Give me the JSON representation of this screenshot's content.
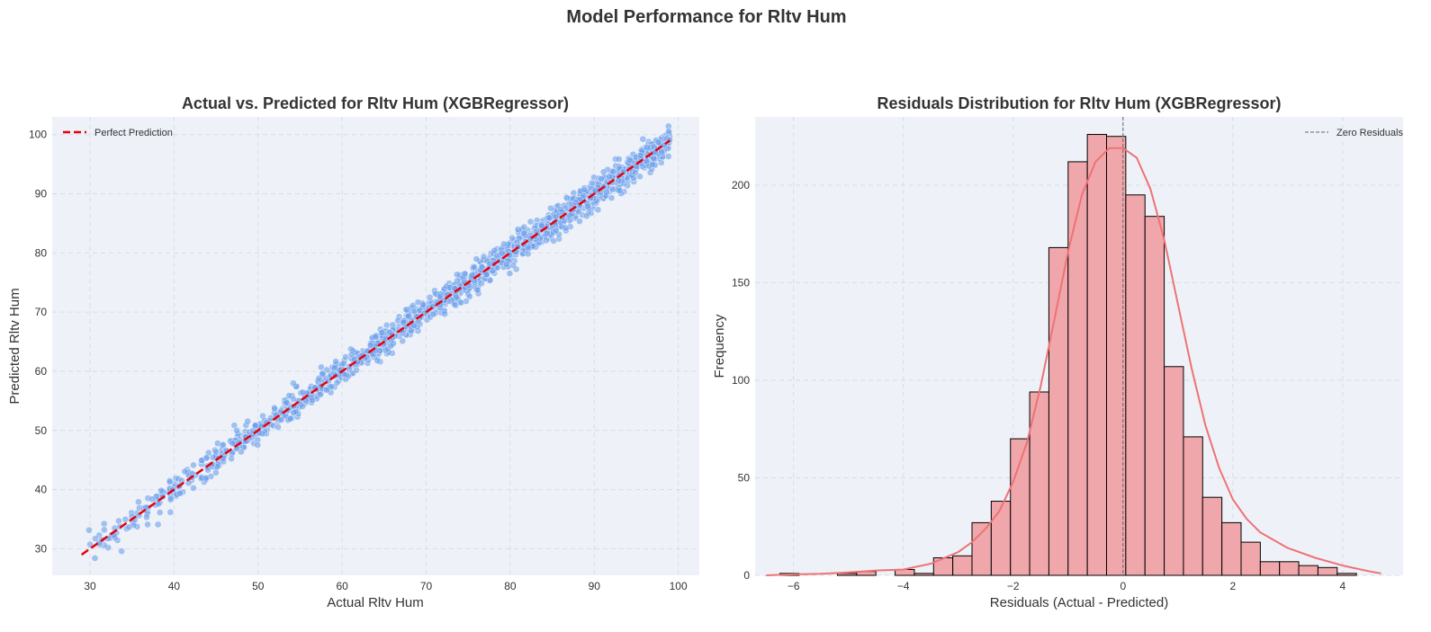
{
  "figure": {
    "suptitle": "Model Performance for Rltv Hum"
  },
  "colors": {
    "panel_bg": "#eef2f8",
    "grid": "#d7dce6",
    "scatter_point": "#6d9eeb",
    "perfect_line": "#e8000b",
    "hist_fill": "#f0a7ab",
    "hist_edge": "#000000",
    "kde_line": "#ee7275",
    "zero_line": "#666666"
  },
  "chart_data": [
    {
      "type": "scatter",
      "title": "Actual vs. Predicted for Rltv Hum (XGBRegressor)",
      "xlabel": "Actual Rltv Hum",
      "ylabel": "Predicted Rltv Hum",
      "xlim": [
        25.5,
        102.5
      ],
      "ylim": [
        25.5,
        103.0
      ],
      "xticks": [
        30,
        40,
        50,
        60,
        70,
        80,
        90,
        100
      ],
      "yticks": [
        30,
        40,
        50,
        60,
        70,
        80,
        90,
        100
      ],
      "grid": true,
      "legend": {
        "placement": "top-left",
        "entries": [
          "Perfect Prediction"
        ]
      },
      "reference_line": {
        "name": "Perfect Prediction",
        "style": "dashed",
        "from": [
          29,
          29
        ],
        "to": [
          99,
          99
        ]
      },
      "points_summary": {
        "x_min": 29,
        "x_max": 99,
        "residual_sd": 1.2,
        "density": "increasing with actual value"
      }
    },
    {
      "type": "bar",
      "subtype": "histogram",
      "title": "Residuals Distribution for Rltv Hum (XGBRegressor)",
      "xlabel": "Residuals (Actual - Predicted)",
      "ylabel": "Frequency",
      "xlim": [
        -6.7,
        5.1
      ],
      "ylim": [
        0,
        235
      ],
      "xticks": [
        -6,
        -4,
        -2,
        0,
        2,
        4
      ],
      "yticks": [
        0,
        50,
        100,
        150,
        200
      ],
      "grid": true,
      "legend": {
        "placement": "top-right",
        "entries": [
          "Zero Residuals"
        ]
      },
      "zero_line": {
        "name": "Zero Residuals",
        "x": 0,
        "style": "dashed"
      },
      "bin_edges": [
        -6.25,
        -5.9,
        -5.55,
        -5.2,
        -4.85,
        -4.5,
        -4.15,
        -3.8,
        -3.45,
        -3.1,
        -2.75,
        -2.4,
        -2.05,
        -1.7,
        -1.35,
        -1.0,
        -0.65,
        -0.3,
        0.05,
        0.4,
        0.75,
        1.1,
        1.45,
        1.8,
        2.15,
        2.5,
        2.85,
        3.2,
        3.55,
        3.9,
        4.25,
        4.6
      ],
      "counts": [
        1,
        0,
        0,
        1,
        2,
        0,
        3,
        1,
        9,
        10,
        27,
        38,
        70,
        94,
        168,
        212,
        226,
        225,
        195,
        184,
        107,
        71,
        40,
        27,
        17,
        7,
        7,
        5,
        4,
        1,
        0
      ],
      "kde": {
        "x": [
          -6.5,
          -6.0,
          -5.5,
          -5.0,
          -4.5,
          -4.0,
          -3.5,
          -3.0,
          -2.75,
          -2.5,
          -2.25,
          -2.0,
          -1.75,
          -1.5,
          -1.25,
          -1.0,
          -0.75,
          -0.5,
          -0.25,
          0.0,
          0.25,
          0.5,
          0.75,
          1.0,
          1.25,
          1.5,
          1.75,
          2.0,
          2.25,
          2.5,
          3.0,
          3.5,
          4.0,
          4.5,
          4.7
        ],
        "y": [
          0,
          0.5,
          0.8,
          1.5,
          2.5,
          3,
          6,
          12,
          17,
          24,
          33,
          48,
          68,
          97,
          131,
          166,
          195,
          212,
          219,
          219,
          214,
          198,
          172,
          139,
          106,
          77,
          55,
          39,
          29,
          22,
          14,
          9,
          5,
          2,
          1
        ]
      }
    }
  ]
}
